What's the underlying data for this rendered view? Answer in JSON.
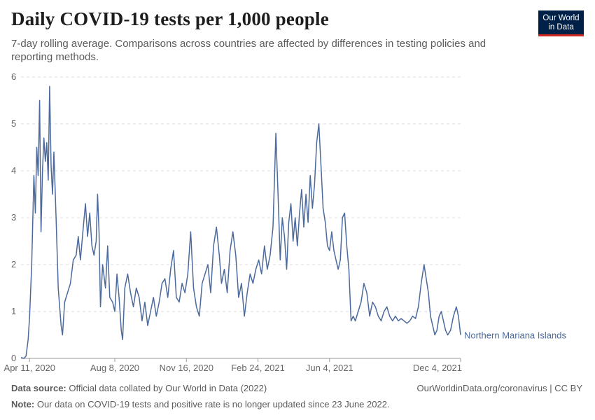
{
  "header": {
    "title": "Daily COVID-19 tests per 1,000 people",
    "subtitle": "7-day rolling average. Comparisons across countries are affected by differences in testing policies and reporting methods.",
    "logo_line1": "Our World",
    "logo_line2": "in Data"
  },
  "footer": {
    "source_label": "Data source:",
    "source_text": "Official data collated by Our World in Data (2022)",
    "url": "OurWorldinData.org/coronavirus | CC BY",
    "note_label": "Note:",
    "note_text": "Our data on COVID-19 tests and positive rate is no longer updated since 23 June 2022."
  },
  "colors": {
    "series": "#4c6a9c",
    "grid": "#dddddd",
    "axis": "#999999"
  },
  "chart_data": {
    "type": "line",
    "title": "Daily COVID-19 tests per 1,000 people",
    "ylim": [
      0,
      6
    ],
    "yticks": [
      0,
      1,
      2,
      3,
      4,
      5,
      6
    ],
    "xlim": [
      "2020-03-30",
      "2021-12-04"
    ],
    "xticks": [
      {
        "date": "2020-04-11",
        "label": "Apr 11, 2020"
      },
      {
        "date": "2020-08-08",
        "label": "Aug 8, 2020"
      },
      {
        "date": "2020-11-16",
        "label": "Nov 16, 2020"
      },
      {
        "date": "2021-02-24",
        "label": "Feb 24, 2021"
      },
      {
        "date": "2021-06-04",
        "label": "Jun 4, 2021"
      },
      {
        "date": "2021-12-04",
        "label": "Dec 4, 2021"
      }
    ],
    "series": [
      {
        "name": "Northern Mariana Islands",
        "points": [
          [
            "2020-03-30",
            0.02
          ],
          [
            "2020-04-03",
            0.0
          ],
          [
            "2020-04-06",
            0.05
          ],
          [
            "2020-04-09",
            0.4
          ],
          [
            "2020-04-11",
            0.9
          ],
          [
            "2020-04-14",
            2.0
          ],
          [
            "2020-04-17",
            3.9
          ],
          [
            "2020-04-19",
            3.1
          ],
          [
            "2020-04-21",
            4.5
          ],
          [
            "2020-04-23",
            3.9
          ],
          [
            "2020-04-25",
            5.5
          ],
          [
            "2020-04-27",
            2.7
          ],
          [
            "2020-04-29",
            4.0
          ],
          [
            "2020-05-01",
            4.7
          ],
          [
            "2020-05-03",
            4.2
          ],
          [
            "2020-05-05",
            4.6
          ],
          [
            "2020-05-07",
            3.8
          ],
          [
            "2020-05-09",
            5.8
          ],
          [
            "2020-05-11",
            4.1
          ],
          [
            "2020-05-13",
            3.5
          ],
          [
            "2020-05-15",
            4.4
          ],
          [
            "2020-05-18",
            3.0
          ],
          [
            "2020-05-21",
            1.5
          ],
          [
            "2020-05-23",
            1.1
          ],
          [
            "2020-05-25",
            0.7
          ],
          [
            "2020-05-27",
            0.5
          ],
          [
            "2020-05-30",
            1.2
          ],
          [
            "2020-06-03",
            1.4
          ],
          [
            "2020-06-07",
            1.6
          ],
          [
            "2020-06-11",
            2.1
          ],
          [
            "2020-06-15",
            2.2
          ],
          [
            "2020-06-18",
            2.6
          ],
          [
            "2020-06-21",
            2.1
          ],
          [
            "2020-06-25",
            2.8
          ],
          [
            "2020-06-28",
            3.3
          ],
          [
            "2020-07-01",
            2.6
          ],
          [
            "2020-07-04",
            3.1
          ],
          [
            "2020-07-07",
            2.4
          ],
          [
            "2020-07-10",
            2.2
          ],
          [
            "2020-07-13",
            2.5
          ],
          [
            "2020-07-15",
            3.5
          ],
          [
            "2020-07-17",
            2.7
          ],
          [
            "2020-07-19",
            1.1
          ],
          [
            "2020-07-22",
            2.0
          ],
          [
            "2020-07-26",
            1.5
          ],
          [
            "2020-07-29",
            2.4
          ],
          [
            "2020-08-01",
            1.3
          ],
          [
            "2020-08-05",
            1.2
          ],
          [
            "2020-08-08",
            1.0
          ],
          [
            "2020-08-11",
            1.8
          ],
          [
            "2020-08-14",
            1.3
          ],
          [
            "2020-08-17",
            0.6
          ],
          [
            "2020-08-19",
            0.4
          ],
          [
            "2020-08-22",
            1.5
          ],
          [
            "2020-08-26",
            1.8
          ],
          [
            "2020-08-30",
            1.4
          ],
          [
            "2020-09-03",
            1.1
          ],
          [
            "2020-09-07",
            1.5
          ],
          [
            "2020-09-11",
            1.3
          ],
          [
            "2020-09-15",
            0.8
          ],
          [
            "2020-09-19",
            1.2
          ],
          [
            "2020-09-23",
            0.7
          ],
          [
            "2020-09-27",
            1.0
          ],
          [
            "2020-10-01",
            1.3
          ],
          [
            "2020-10-05",
            0.9
          ],
          [
            "2020-10-09",
            1.2
          ],
          [
            "2020-10-13",
            1.6
          ],
          [
            "2020-10-17",
            1.7
          ],
          [
            "2020-10-21",
            1.3
          ],
          [
            "2020-10-25",
            1.9
          ],
          [
            "2020-10-29",
            2.3
          ],
          [
            "2020-11-02",
            1.3
          ],
          [
            "2020-11-06",
            1.2
          ],
          [
            "2020-11-10",
            1.6
          ],
          [
            "2020-11-14",
            1.4
          ],
          [
            "2020-11-18",
            1.8
          ],
          [
            "2020-11-22",
            2.7
          ],
          [
            "2020-11-26",
            1.5
          ],
          [
            "2020-11-30",
            1.1
          ],
          [
            "2020-12-04",
            0.9
          ],
          [
            "2020-12-08",
            1.6
          ],
          [
            "2020-12-12",
            1.8
          ],
          [
            "2020-12-16",
            2.0
          ],
          [
            "2020-12-20",
            1.4
          ],
          [
            "2020-12-24",
            2.4
          ],
          [
            "2020-12-28",
            2.8
          ],
          [
            "2021-01-01",
            2.2
          ],
          [
            "2021-01-04",
            1.6
          ],
          [
            "2021-01-08",
            1.9
          ],
          [
            "2021-01-12",
            1.4
          ],
          [
            "2021-01-16",
            2.3
          ],
          [
            "2021-01-20",
            2.7
          ],
          [
            "2021-01-24",
            2.2
          ],
          [
            "2021-01-28",
            1.3
          ],
          [
            "2021-02-01",
            1.6
          ],
          [
            "2021-02-05",
            0.9
          ],
          [
            "2021-02-09",
            1.4
          ],
          [
            "2021-02-13",
            1.8
          ],
          [
            "2021-02-17",
            1.6
          ],
          [
            "2021-02-21",
            1.9
          ],
          [
            "2021-02-25",
            2.1
          ],
          [
            "2021-03-01",
            1.8
          ],
          [
            "2021-03-05",
            2.4
          ],
          [
            "2021-03-09",
            1.9
          ],
          [
            "2021-03-13",
            2.2
          ],
          [
            "2021-03-17",
            2.8
          ],
          [
            "2021-03-21",
            4.8
          ],
          [
            "2021-03-24",
            3.5
          ],
          [
            "2021-03-27",
            2.1
          ],
          [
            "2021-03-30",
            3.0
          ],
          [
            "2021-04-02",
            2.6
          ],
          [
            "2021-04-05",
            1.9
          ],
          [
            "2021-04-08",
            2.9
          ],
          [
            "2021-04-11",
            3.3
          ],
          [
            "2021-04-14",
            2.5
          ],
          [
            "2021-04-17",
            3.0
          ],
          [
            "2021-04-20",
            2.4
          ],
          [
            "2021-04-23",
            3.1
          ],
          [
            "2021-04-26",
            3.6
          ],
          [
            "2021-04-29",
            2.8
          ],
          [
            "2021-05-02",
            3.5
          ],
          [
            "2021-05-05",
            2.9
          ],
          [
            "2021-05-08",
            3.9
          ],
          [
            "2021-05-11",
            3.2
          ],
          [
            "2021-05-14",
            3.7
          ],
          [
            "2021-05-17",
            4.6
          ],
          [
            "2021-05-20",
            5.0
          ],
          [
            "2021-05-23",
            4.1
          ],
          [
            "2021-05-26",
            3.2
          ],
          [
            "2021-05-29",
            2.9
          ],
          [
            "2021-06-01",
            2.4
          ],
          [
            "2021-06-04",
            2.3
          ],
          [
            "2021-06-07",
            2.7
          ],
          [
            "2021-06-10",
            2.3
          ],
          [
            "2021-06-13",
            2.1
          ],
          [
            "2021-06-16",
            1.9
          ],
          [
            "2021-06-19",
            2.1
          ],
          [
            "2021-06-22",
            3.0
          ],
          [
            "2021-06-25",
            3.1
          ],
          [
            "2021-06-28",
            2.4
          ],
          [
            "2021-07-01",
            1.9
          ],
          [
            "2021-07-04",
            0.8
          ],
          [
            "2021-07-07",
            0.9
          ],
          [
            "2021-07-10",
            0.8
          ],
          [
            "2021-07-14",
            1.0
          ],
          [
            "2021-07-18",
            1.2
          ],
          [
            "2021-07-22",
            1.6
          ],
          [
            "2021-07-26",
            1.4
          ],
          [
            "2021-07-30",
            0.9
          ],
          [
            "2021-08-03",
            1.2
          ],
          [
            "2021-08-07",
            1.1
          ],
          [
            "2021-08-11",
            0.9
          ],
          [
            "2021-08-15",
            0.8
          ],
          [
            "2021-08-19",
            1.0
          ],
          [
            "2021-08-23",
            1.1
          ],
          [
            "2021-08-27",
            0.9
          ],
          [
            "2021-08-31",
            0.8
          ],
          [
            "2021-09-04",
            0.9
          ],
          [
            "2021-09-08",
            0.8
          ],
          [
            "2021-09-12",
            0.85
          ],
          [
            "2021-09-16",
            0.8
          ],
          [
            "2021-09-20",
            0.75
          ],
          [
            "2021-09-24",
            0.8
          ],
          [
            "2021-09-28",
            0.9
          ],
          [
            "2021-10-02",
            0.85
          ],
          [
            "2021-10-06",
            1.1
          ],
          [
            "2021-10-10",
            1.6
          ],
          [
            "2021-10-14",
            2.0
          ],
          [
            "2021-10-17",
            1.7
          ],
          [
            "2021-10-20",
            1.4
          ],
          [
            "2021-10-23",
            0.9
          ],
          [
            "2021-10-26",
            0.7
          ],
          [
            "2021-10-29",
            0.5
          ],
          [
            "2021-11-01",
            0.6
          ],
          [
            "2021-11-04",
            0.9
          ],
          [
            "2021-11-07",
            1.0
          ],
          [
            "2021-11-10",
            0.8
          ],
          [
            "2021-11-13",
            0.6
          ],
          [
            "2021-11-16",
            0.5
          ],
          [
            "2021-11-20",
            0.6
          ],
          [
            "2021-11-24",
            0.9
          ],
          [
            "2021-11-28",
            1.1
          ],
          [
            "2021-12-01",
            0.9
          ],
          [
            "2021-12-04",
            0.5
          ]
        ]
      }
    ]
  }
}
